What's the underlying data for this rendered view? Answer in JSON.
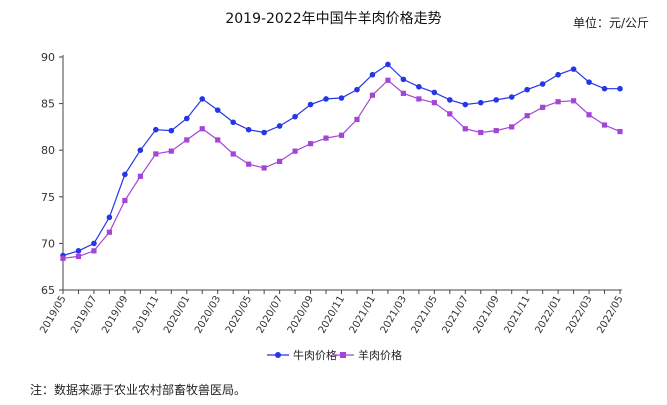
{
  "header": {
    "title": "2019-2022年中国牛羊肉价格走势",
    "unit": "单位：元/公斤"
  },
  "footer": {
    "note": "注：数据来源于农业农村部畜牧兽医局。"
  },
  "colors": {
    "beef": "#2536e8",
    "mutton": "#a445d6",
    "axis": "#444444"
  },
  "chart_data": {
    "type": "line",
    "title": "2019-2022年中国牛羊肉价格走势",
    "ylabel": "单位：元/公斤",
    "ylim": [
      65,
      90
    ],
    "yticks": [
      65,
      70,
      75,
      80,
      85,
      90
    ],
    "grid": false,
    "legend_position": "bottom-center",
    "categories": [
      "2019/05",
      "2019/06",
      "2019/07",
      "2019/08",
      "2019/09",
      "2019/10",
      "2019/11",
      "2019/12",
      "2020/01",
      "2020/02",
      "2020/03",
      "2020/04",
      "2020/05",
      "2020/06",
      "2020/07",
      "2020/08",
      "2020/09",
      "2020/10",
      "2020/11",
      "2020/12",
      "2021/01",
      "2021/02",
      "2021/03",
      "2021/04",
      "2021/05",
      "2021/06",
      "2021/07",
      "2021/08",
      "2021/09",
      "2021/10",
      "2021/11",
      "2021/12",
      "2022/01",
      "2022/02",
      "2022/03",
      "2022/04",
      "2022/05"
    ],
    "xtick_labels": [
      "2019/05",
      "2019/07",
      "2019/09",
      "2019/11",
      "2020/01",
      "2020/03",
      "2020/05",
      "2020/07",
      "2020/09",
      "2020/11",
      "2021/01",
      "2021/03",
      "2021/05",
      "2021/07",
      "2021/09",
      "2021/11",
      "2022/01",
      "2022/03",
      "2022/05"
    ],
    "series": [
      {
        "name": "牛肉价格",
        "marker": "circle",
        "values": [
          68.7,
          69.2,
          70.0,
          72.8,
          77.4,
          80.0,
          82.2,
          82.1,
          83.4,
          85.5,
          84.3,
          83.0,
          82.2,
          81.9,
          82.6,
          83.6,
          84.9,
          85.5,
          85.6,
          86.5,
          88.1,
          89.2,
          87.6,
          86.8,
          86.2,
          85.4,
          84.9,
          85.1,
          85.4,
          85.7,
          86.5,
          87.1,
          88.1,
          88.7,
          87.3,
          86.6,
          86.6
        ]
      },
      {
        "name": "羊肉价格",
        "marker": "square",
        "values": [
          68.4,
          68.6,
          69.2,
          71.2,
          74.6,
          77.2,
          79.6,
          79.9,
          81.1,
          82.3,
          81.1,
          79.6,
          78.5,
          78.1,
          78.8,
          79.9,
          80.7,
          81.3,
          81.6,
          83.3,
          85.9,
          87.5,
          86.1,
          85.5,
          85.1,
          83.9,
          82.3,
          81.9,
          82.1,
          82.5,
          83.7,
          84.6,
          85.2,
          85.3,
          83.8,
          82.7,
          82.0
        ]
      }
    ]
  }
}
